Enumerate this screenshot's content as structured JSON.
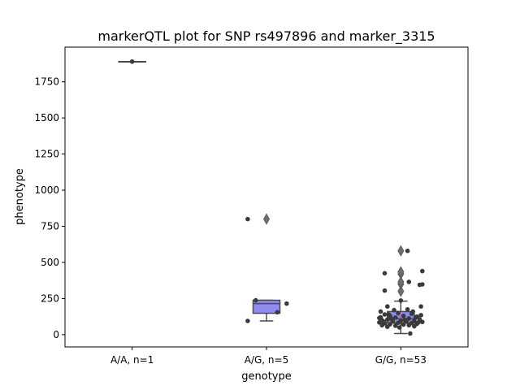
{
  "chart_data": {
    "type": "box",
    "title": "markerQTL plot for SNP rs497896 and marker_3315",
    "xlabel": "genotype",
    "ylabel": "phenotype",
    "ylim": [
      -85,
      1990
    ],
    "yticks": [
      0,
      250,
      500,
      750,
      1000,
      1250,
      1500,
      1750
    ],
    "grid": false,
    "colors": {
      "box_fill": "#8e8cf0",
      "box_line": "#4a4a4a",
      "point": "#3a3a3a",
      "mean_marker": "#c060c0",
      "axes": "#000000"
    },
    "categories": [
      "A/A, n=1",
      "A/G, n=5",
      "G/G, n=53"
    ],
    "boxes": [
      {
        "q1": 1890,
        "median": 1890,
        "q3": 1890,
        "whisker_low": 1890,
        "whisker_high": 1890,
        "outliers": []
      },
      {
        "q1": 148,
        "median": 215,
        "q3": 238,
        "whisker_low": 95,
        "whisker_high": 238,
        "outliers": [
          800
        ]
      },
      {
        "q1": 80,
        "median": 110,
        "q3": 160,
        "whisker_low": 8,
        "whisker_high": 232,
        "outliers": [
          300,
          350,
          365,
          420,
          435,
          580
        ]
      }
    ],
    "points": [
      [
        {
          "dx": 0.0,
          "y": 1890
        }
      ],
      [
        {
          "dx": -0.14,
          "y": 800
        },
        {
          "dx": -0.14,
          "y": 95
        },
        {
          "dx": -0.08,
          "y": 238
        },
        {
          "dx": 0.08,
          "y": 155
        },
        {
          "dx": 0.15,
          "y": 215
        }
      ],
      [
        {
          "dx": 0.05,
          "y": 580
        },
        {
          "dx": -0.12,
          "y": 425
        },
        {
          "dx": 0.16,
          "y": 440
        },
        {
          "dx": 0.06,
          "y": 365
        },
        {
          "dx": 0.14,
          "y": 345
        },
        {
          "dx": 0.16,
          "y": 348
        },
        {
          "dx": -0.12,
          "y": 305
        },
        {
          "dx": 0.0,
          "y": 236
        },
        {
          "dx": -0.1,
          "y": 195
        },
        {
          "dx": 0.15,
          "y": 195
        },
        {
          "dx": -0.15,
          "y": 160
        },
        {
          "dx": -0.05,
          "y": 170
        },
        {
          "dx": 0.05,
          "y": 175
        },
        {
          "dx": -0.12,
          "y": 140
        },
        {
          "dx": 0.08,
          "y": 145
        },
        {
          "dx": -0.08,
          "y": 130
        },
        {
          "dx": 0.02,
          "y": 130
        },
        {
          "dx": 0.12,
          "y": 125
        },
        {
          "dx": -0.16,
          "y": 115
        },
        {
          "dx": -0.04,
          "y": 118
        },
        {
          "dx": 0.06,
          "y": 112
        },
        {
          "dx": -0.1,
          "y": 105
        },
        {
          "dx": 0.14,
          "y": 105
        },
        {
          "dx": -0.14,
          "y": 100
        },
        {
          "dx": 0.0,
          "y": 98
        },
        {
          "dx": 0.1,
          "y": 95
        },
        {
          "dx": -0.06,
          "y": 92
        },
        {
          "dx": 0.04,
          "y": 90
        },
        {
          "dx": -0.16,
          "y": 85
        },
        {
          "dx": 0.16,
          "y": 88
        },
        {
          "dx": -0.02,
          "y": 82
        },
        {
          "dx": -0.12,
          "y": 78
        },
        {
          "dx": 0.08,
          "y": 80
        },
        {
          "dx": -0.08,
          "y": 72
        },
        {
          "dx": 0.12,
          "y": 75
        },
        {
          "dx": 0.02,
          "y": 70
        },
        {
          "dx": -0.14,
          "y": 65
        },
        {
          "dx": -0.04,
          "y": 62
        },
        {
          "dx": 0.06,
          "y": 65
        },
        {
          "dx": -0.1,
          "y": 55
        },
        {
          "dx": 0.1,
          "y": 58
        },
        {
          "dx": -0.15,
          "y": 120
        },
        {
          "dx": 0.15,
          "y": 135
        },
        {
          "dx": -0.02,
          "y": 150
        },
        {
          "dx": 0.09,
          "y": 160
        },
        {
          "dx": -0.07,
          "y": 110
        },
        {
          "dx": 0.11,
          "y": 118
        },
        {
          "dx": 0.03,
          "y": 102
        },
        {
          "dx": -0.13,
          "y": 92
        },
        {
          "dx": 0.13,
          "y": 85
        },
        {
          "dx": -0.01,
          "y": 50
        },
        {
          "dx": 0.07,
          "y": 8
        },
        {
          "dx": -0.09,
          "y": 140
        }
      ]
    ],
    "mean_markers": [
      {
        "category": 2,
        "y": 135
      },
      {
        "category": 2,
        "y": 118
      }
    ]
  }
}
